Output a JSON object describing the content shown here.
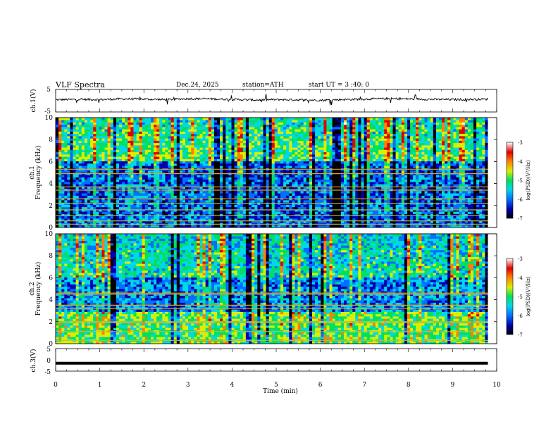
{
  "header": {
    "title": "VLF  Spectra",
    "date": "Dec.24, 2025",
    "station": "station=ATH",
    "start_ut": "start  UT  =    3  :40: 0"
  },
  "colors": {
    "spectrogram_scale": [
      "#000000",
      "#0000b0",
      "#0070ff",
      "#00d8e8",
      "#00e060",
      "#d8f000",
      "#ff8000",
      "#e00000",
      "#ffffff"
    ],
    "timeseries": "#000000"
  },
  "chart_data": [
    {
      "id": "ch1-waveform",
      "type": "line",
      "ylabel": "ch.1(V)",
      "ylim": [
        -5,
        5
      ],
      "yticks": [
        "5",
        "-5"
      ],
      "xlim": [
        0,
        10
      ],
      "x": [
        0,
        0.5,
        1.0,
        1.5,
        2.0,
        2.5,
        3.0,
        3.5,
        4.0,
        4.5,
        5.0,
        5.5,
        6.0,
        6.5,
        7.0,
        7.5,
        8.0,
        8.5,
        9.0,
        9.5,
        9.8
      ],
      "values": [
        0.4,
        0.6,
        0.5,
        0.8,
        0.7,
        0.5,
        0.9,
        0.8,
        0.6,
        0.3,
        0.5,
        0.4,
        0.2,
        0.5,
        0.7,
        0.9,
        0.8,
        0.6,
        0.5,
        0.6,
        0.7
      ]
    },
    {
      "id": "ch1-spectrogram",
      "type": "heatmap",
      "ylabel_channel": "ch.1",
      "ylabel": "Frequency  (kHz)",
      "ylim": [
        0,
        10
      ],
      "yticks": [
        "10",
        "8",
        "6",
        "4",
        "2",
        "0"
      ],
      "xlim": [
        0,
        9.8
      ],
      "zlim": [
        -7,
        -3
      ],
      "colorbar_label": "log(PSD)(V²/Hz)",
      "colorbar_ticks": [
        "-3",
        "-4",
        "-5",
        "-6",
        "-7"
      ],
      "line_frequencies_khz": [
        0.3,
        0.6,
        1.1,
        1.6,
        2.2,
        2.6,
        3.4,
        3.7,
        4.9,
        5.3
      ]
    },
    {
      "id": "ch2-spectrogram",
      "type": "heatmap",
      "ylabel_channel": "ch.2",
      "ylabel": "Frequency  (kHz)",
      "ylim": [
        0,
        10
      ],
      "yticks": [
        "10",
        "8",
        "6",
        "4",
        "2",
        "0"
      ],
      "xlim": [
        0,
        9.8
      ],
      "zlim": [
        -7,
        -3
      ],
      "colorbar_label": "log(PSD)(V²/Hz)",
      "colorbar_ticks": [
        "-3",
        "-4",
        "-5",
        "-6",
        "-7"
      ],
      "line_frequencies_khz": [
        0.3,
        1.1,
        1.9,
        2.0,
        3.2,
        3.5,
        4.5,
        4.6
      ]
    },
    {
      "id": "ch3-waveform",
      "type": "line",
      "ylabel": "ch.3(V)",
      "ylim": [
        -5,
        5
      ],
      "yticks": [
        "5",
        "0",
        "-5"
      ],
      "xlim": [
        0,
        10
      ],
      "x": [
        0,
        9.8
      ],
      "values": [
        -1.5,
        -1.5
      ]
    }
  ],
  "xaxis": {
    "label": "Time  (min)",
    "ticks": [
      "0",
      "1",
      "2",
      "3",
      "4",
      "5",
      "6",
      "7",
      "8",
      "9",
      "10"
    ],
    "range": [
      0,
      10
    ]
  }
}
